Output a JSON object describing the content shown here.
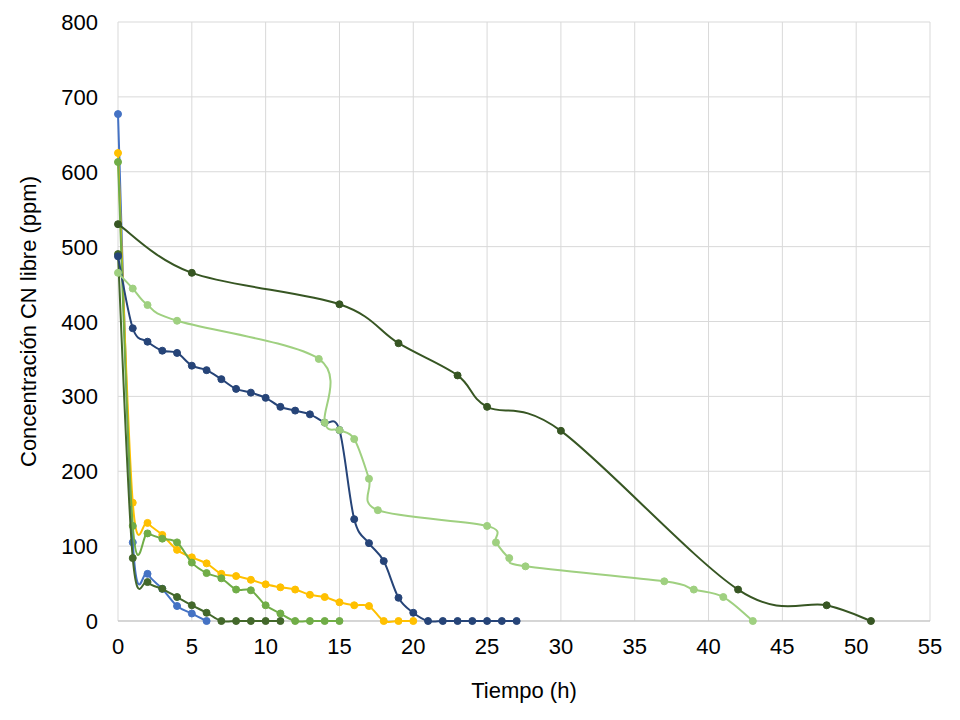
{
  "chart_data": {
    "type": "line",
    "x_label": "Tiempo (h)",
    "y_label": "Concentración CN libre (ppm)",
    "xlim": [
      0,
      55
    ],
    "ylim": [
      0,
      800
    ],
    "xticks": [
      0,
      5,
      10,
      15,
      20,
      25,
      30,
      35,
      40,
      45,
      50,
      55
    ],
    "yticks": [
      0,
      100,
      200,
      300,
      400,
      500,
      600,
      700,
      800
    ],
    "grid": true,
    "marker": "circle",
    "line_style": "smooth",
    "series": [
      {
        "color": "#4472c4",
        "x": [
          0,
          1,
          2,
          3,
          4,
          5,
          6
        ],
        "values": [
          677,
          105,
          63,
          43,
          20,
          10,
          0
        ]
      },
      {
        "color": "#ffc000",
        "x": [
          0,
          1,
          2,
          3,
          4,
          5,
          6,
          7,
          8,
          9,
          10,
          11,
          12,
          13,
          14,
          15,
          16,
          17,
          18,
          19,
          20
        ],
        "values": [
          625,
          158,
          131,
          115,
          95,
          85,
          77,
          63,
          60,
          55,
          49,
          45,
          42,
          35,
          32,
          25,
          21,
          20,
          0,
          0,
          0
        ]
      },
      {
        "color": "#70ad47",
        "x": [
          0,
          1,
          2,
          3,
          4,
          5,
          6,
          7,
          8,
          9,
          10,
          11,
          12,
          13,
          14,
          15
        ],
        "values": [
          613,
          127,
          117,
          110,
          105,
          78,
          64,
          57,
          42,
          41,
          21,
          10,
          0,
          0,
          0,
          0
        ]
      },
      {
        "color": "#43682b",
        "x": [
          0,
          1,
          2,
          3,
          4,
          5,
          6,
          7,
          8,
          9,
          10,
          11
        ],
        "values": [
          490,
          84,
          52,
          43,
          32,
          21,
          11,
          0,
          0,
          0,
          0,
          0
        ]
      },
      {
        "color": "#264478",
        "x": [
          0,
          1,
          2,
          3,
          4,
          5,
          6,
          7,
          8,
          9,
          10,
          11,
          12,
          13,
          14,
          15,
          16,
          17,
          18,
          19,
          20,
          21,
          22,
          23,
          24,
          25,
          26,
          27
        ],
        "values": [
          487,
          391,
          373,
          361,
          358,
          341,
          335,
          323,
          310,
          305,
          298,
          286,
          281,
          276,
          265,
          255,
          136,
          104,
          80,
          31,
          11,
          0,
          0,
          0,
          0,
          0,
          0,
          0
        ]
      },
      {
        "color": "#9fd080",
        "x": [
          0,
          1,
          2,
          4,
          13.6,
          14,
          15,
          16,
          17,
          17.6,
          25,
          25.6,
          26.5,
          27.6,
          37,
          39,
          41,
          43
        ],
        "values": [
          465,
          444,
          422,
          401,
          350,
          265,
          255,
          243,
          190,
          148,
          127,
          105,
          84,
          73,
          53,
          42,
          32,
          0
        ]
      },
      {
        "color": "#375623",
        "x": [
          0,
          5,
          15,
          19,
          23,
          25,
          30,
          42,
          48,
          51
        ],
        "values": [
          530,
          465,
          423,
          371,
          328,
          286,
          254,
          42,
          21,
          0
        ]
      }
    ]
  }
}
